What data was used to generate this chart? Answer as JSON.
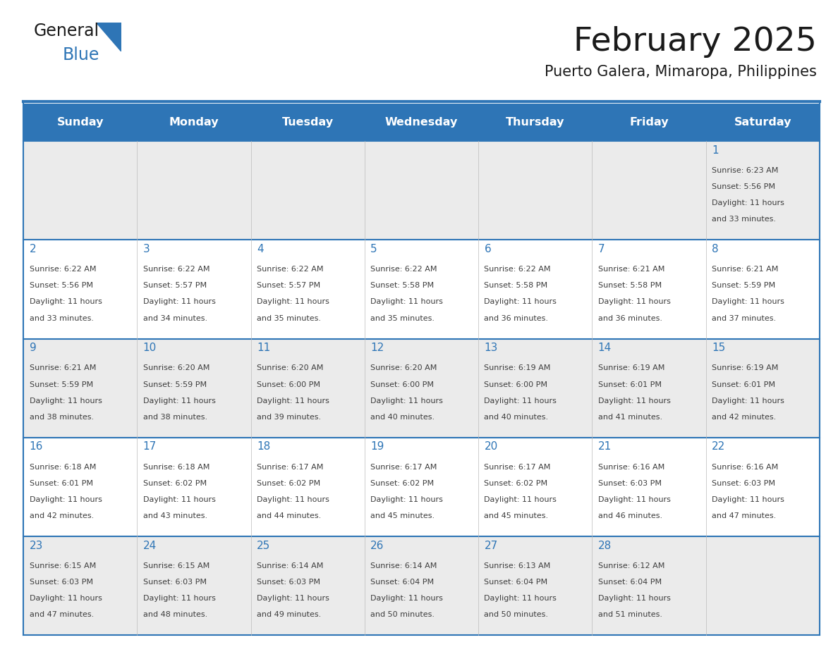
{
  "title": "February 2025",
  "subtitle": "Puerto Galera, Mimaropa, Philippines",
  "days_of_week": [
    "Sunday",
    "Monday",
    "Tuesday",
    "Wednesday",
    "Thursday",
    "Friday",
    "Saturday"
  ],
  "header_bg": "#2E75B6",
  "header_text_color": "#FFFFFF",
  "cell_bg_odd": "#EBEBEB",
  "cell_bg_even": "#FFFFFF",
  "border_color": "#2E75B6",
  "separator_color": "#2E75B6",
  "day_num_color": "#2E75B6",
  "text_color": "#3D3D3D",
  "calendar_data": [
    [
      null,
      null,
      null,
      null,
      null,
      null,
      {
        "day": 1,
        "sunrise": "6:23 AM",
        "sunset": "5:56 PM",
        "daylight": "11 hours and 33 minutes."
      }
    ],
    [
      {
        "day": 2,
        "sunrise": "6:22 AM",
        "sunset": "5:56 PM",
        "daylight": "11 hours and 33 minutes."
      },
      {
        "day": 3,
        "sunrise": "6:22 AM",
        "sunset": "5:57 PM",
        "daylight": "11 hours and 34 minutes."
      },
      {
        "day": 4,
        "sunrise": "6:22 AM",
        "sunset": "5:57 PM",
        "daylight": "11 hours and 35 minutes."
      },
      {
        "day": 5,
        "sunrise": "6:22 AM",
        "sunset": "5:58 PM",
        "daylight": "11 hours and 35 minutes."
      },
      {
        "day": 6,
        "sunrise": "6:22 AM",
        "sunset": "5:58 PM",
        "daylight": "11 hours and 36 minutes."
      },
      {
        "day": 7,
        "sunrise": "6:21 AM",
        "sunset": "5:58 PM",
        "daylight": "11 hours and 36 minutes."
      },
      {
        "day": 8,
        "sunrise": "6:21 AM",
        "sunset": "5:59 PM",
        "daylight": "11 hours and 37 minutes."
      }
    ],
    [
      {
        "day": 9,
        "sunrise": "6:21 AM",
        "sunset": "5:59 PM",
        "daylight": "11 hours and 38 minutes."
      },
      {
        "day": 10,
        "sunrise": "6:20 AM",
        "sunset": "5:59 PM",
        "daylight": "11 hours and 38 minutes."
      },
      {
        "day": 11,
        "sunrise": "6:20 AM",
        "sunset": "6:00 PM",
        "daylight": "11 hours and 39 minutes."
      },
      {
        "day": 12,
        "sunrise": "6:20 AM",
        "sunset": "6:00 PM",
        "daylight": "11 hours and 40 minutes."
      },
      {
        "day": 13,
        "sunrise": "6:19 AM",
        "sunset": "6:00 PM",
        "daylight": "11 hours and 40 minutes."
      },
      {
        "day": 14,
        "sunrise": "6:19 AM",
        "sunset": "6:01 PM",
        "daylight": "11 hours and 41 minutes."
      },
      {
        "day": 15,
        "sunrise": "6:19 AM",
        "sunset": "6:01 PM",
        "daylight": "11 hours and 42 minutes."
      }
    ],
    [
      {
        "day": 16,
        "sunrise": "6:18 AM",
        "sunset": "6:01 PM",
        "daylight": "11 hours and 42 minutes."
      },
      {
        "day": 17,
        "sunrise": "6:18 AM",
        "sunset": "6:02 PM",
        "daylight": "11 hours and 43 minutes."
      },
      {
        "day": 18,
        "sunrise": "6:17 AM",
        "sunset": "6:02 PM",
        "daylight": "11 hours and 44 minutes."
      },
      {
        "day": 19,
        "sunrise": "6:17 AM",
        "sunset": "6:02 PM",
        "daylight": "11 hours and 45 minutes."
      },
      {
        "day": 20,
        "sunrise": "6:17 AM",
        "sunset": "6:02 PM",
        "daylight": "11 hours and 45 minutes."
      },
      {
        "day": 21,
        "sunrise": "6:16 AM",
        "sunset": "6:03 PM",
        "daylight": "11 hours and 46 minutes."
      },
      {
        "day": 22,
        "sunrise": "6:16 AM",
        "sunset": "6:03 PM",
        "daylight": "11 hours and 47 minutes."
      }
    ],
    [
      {
        "day": 23,
        "sunrise": "6:15 AM",
        "sunset": "6:03 PM",
        "daylight": "11 hours and 47 minutes."
      },
      {
        "day": 24,
        "sunrise": "6:15 AM",
        "sunset": "6:03 PM",
        "daylight": "11 hours and 48 minutes."
      },
      {
        "day": 25,
        "sunrise": "6:14 AM",
        "sunset": "6:03 PM",
        "daylight": "11 hours and 49 minutes."
      },
      {
        "day": 26,
        "sunrise": "6:14 AM",
        "sunset": "6:04 PM",
        "daylight": "11 hours and 50 minutes."
      },
      {
        "day": 27,
        "sunrise": "6:13 AM",
        "sunset": "6:04 PM",
        "daylight": "11 hours and 50 minutes."
      },
      {
        "day": 28,
        "sunrise": "6:12 AM",
        "sunset": "6:04 PM",
        "daylight": "11 hours and 51 minutes."
      },
      null
    ]
  ]
}
